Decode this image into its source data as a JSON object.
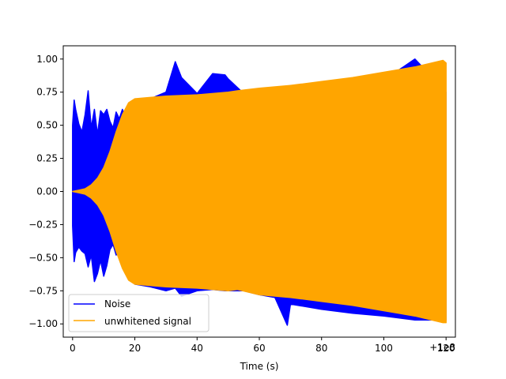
{
  "chart_data": {
    "type": "line",
    "title": "",
    "xlabel": "Time (s)",
    "ylabel": "",
    "x_offset_label": "+1e8",
    "xlim": [
      -3,
      123
    ],
    "ylim": [
      -1.1,
      1.1
    ],
    "x_ticks": [
      0,
      20,
      40,
      60,
      80,
      100,
      120
    ],
    "x_tick_labels": [
      "0",
      "20",
      "40",
      "60",
      "80",
      "100",
      "120"
    ],
    "y_ticks": [
      -1.0,
      -0.75,
      -0.5,
      -0.25,
      0.0,
      0.25,
      0.5,
      0.75,
      1.0
    ],
    "y_tick_labels": [
      "−1.00",
      "−0.75",
      "−0.50",
      "−0.25",
      "0.00",
      "0.25",
      "0.50",
      "0.75",
      "1.00"
    ],
    "grid": false,
    "legend_position": "lower-left",
    "series": [
      {
        "name": "Noise",
        "color": "#0000ff",
        "x": [
          0,
          0.5,
          1,
          2,
          3,
          4,
          5,
          6,
          7,
          8,
          9,
          10,
          11,
          12,
          13,
          14,
          15,
          16,
          18,
          20,
          25,
          30,
          33,
          35,
          40,
          45,
          49,
          50,
          55,
          60,
          65,
          69,
          70,
          75,
          80,
          90,
          100,
          110,
          120
        ],
        "upper": [
          0.5,
          0.69,
          0.62,
          0.51,
          0.45,
          0.58,
          0.76,
          0.48,
          0.62,
          0.43,
          0.61,
          0.58,
          0.62,
          0.53,
          0.48,
          0.6,
          0.55,
          0.62,
          0.5,
          0.62,
          0.7,
          0.75,
          0.98,
          0.86,
          0.74,
          0.89,
          0.88,
          0.85,
          0.74,
          0.74,
          0.77,
          0.79,
          0.8,
          0.8,
          0.82,
          0.84,
          0.84,
          1.0,
          0.75
        ],
        "lower": [
          -0.26,
          -0.53,
          -0.46,
          -0.42,
          -0.45,
          -0.47,
          -0.57,
          -0.48,
          -0.68,
          -0.62,
          -0.52,
          -0.64,
          -0.56,
          -0.44,
          -0.4,
          -0.48,
          -0.46,
          -0.52,
          -0.55,
          -0.7,
          -0.72,
          -0.75,
          -0.73,
          -0.79,
          -0.75,
          -0.74,
          -0.75,
          -0.75,
          -0.75,
          -0.78,
          -0.8,
          -1.01,
          -0.85,
          -0.87,
          -0.89,
          -0.92,
          -0.94,
          -0.97,
          -0.97
        ]
      },
      {
        "name": "unwhitened signal",
        "color": "#ffa500",
        "x": [
          0,
          2,
          4,
          6,
          8,
          10,
          12,
          14,
          16,
          18,
          20,
          25,
          30,
          40,
          50,
          53,
          60,
          70,
          80,
          90,
          100,
          110,
          119,
          120
        ],
        "upper": [
          0.0,
          0.01,
          0.02,
          0.05,
          0.1,
          0.18,
          0.3,
          0.45,
          0.58,
          0.67,
          0.7,
          0.71,
          0.72,
          0.73,
          0.75,
          0.76,
          0.78,
          0.8,
          0.83,
          0.86,
          0.9,
          0.94,
          0.99,
          0.97
        ],
        "lower": [
          0.0,
          -0.01,
          -0.02,
          -0.05,
          -0.1,
          -0.18,
          -0.3,
          -0.45,
          -0.58,
          -0.67,
          -0.7,
          -0.71,
          -0.72,
          -0.73,
          -0.75,
          -0.74,
          -0.78,
          -0.8,
          -0.83,
          -0.86,
          -0.9,
          -0.94,
          -0.99,
          -0.99
        ]
      }
    ]
  }
}
